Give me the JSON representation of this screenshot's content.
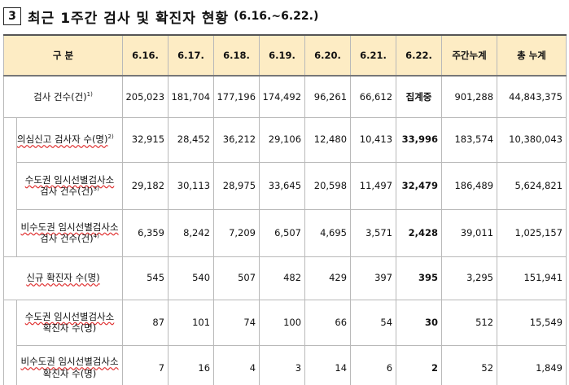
{
  "heading": {
    "number": "3",
    "title": "최근 1주간 검사 및 확진자 현황",
    "period": "(6.16.~6.22.)"
  },
  "table": {
    "headers": [
      "구 분",
      "6.16.",
      "6.17.",
      "6.18.",
      "6.19.",
      "6.20.",
      "6.21.",
      "6.22.",
      "주간누계",
      "총 누계"
    ],
    "rows": [
      {
        "label": "검사 건수(건)",
        "sup": "1)",
        "values": [
          "205,023",
          "181,704",
          "177,196",
          "174,492",
          "96,261",
          "66,612",
          "집계중",
          "901,288",
          "44,843,375"
        ]
      },
      {
        "label": "의심신고 검사자 수(명)",
        "sup": "2)",
        "values": [
          "32,915",
          "28,452",
          "36,212",
          "29,106",
          "12,480",
          "10,413",
          "33,996",
          "183,574",
          "10,380,043"
        ]
      },
      {
        "label_line1": "수도권 임시선별검사소",
        "label_line2": "검사 건수(건)",
        "sup": "3)",
        "values": [
          "29,182",
          "30,113",
          "28,975",
          "33,645",
          "20,598",
          "11,497",
          "32,479",
          "186,489",
          "5,624,821"
        ]
      },
      {
        "label_line1": "비수도권 임시선별검사소",
        "label_line2": "검사 건수(건)",
        "sup": "4)",
        "values": [
          "6,359",
          "8,242",
          "7,209",
          "6,507",
          "4,695",
          "3,571",
          "2,428",
          "39,011",
          "1,025,157"
        ]
      },
      {
        "label": "신규 확진자 수(명)",
        "values": [
          "545",
          "540",
          "507",
          "482",
          "429",
          "397",
          "395",
          "3,295",
          "151,941"
        ]
      },
      {
        "label_line1": "수도권 임시선별검사소",
        "label_line2": "확진자 수(명)",
        "values": [
          "87",
          "101",
          "74",
          "100",
          "66",
          "54",
          "30",
          "512",
          "15,549"
        ]
      },
      {
        "label_line1": "비수도권 임시선별검사소",
        "label_line2": "확진자 수(명)",
        "values": [
          "7",
          "16",
          "4",
          "3",
          "14",
          "6",
          "2",
          "52",
          "1,849"
        ]
      }
    ]
  }
}
